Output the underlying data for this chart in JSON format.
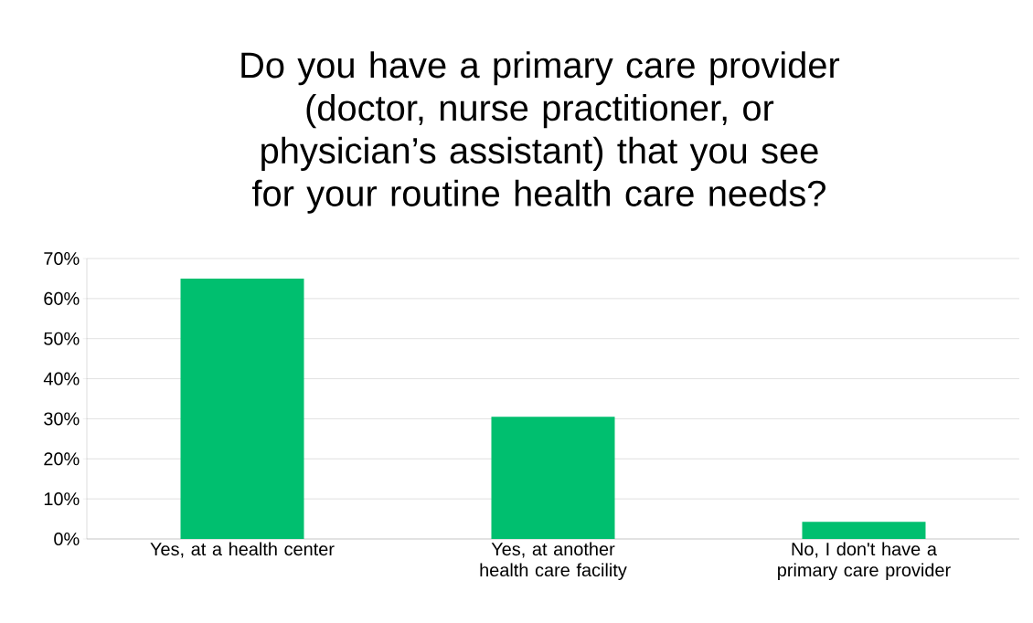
{
  "chart_data": {
    "type": "bar",
    "title": "Do you have a primary care provider (doctor, nurse practitioner, or physician’s assistant) that you see for your routine health care needs?",
    "categories": [
      "Yes, at a health center",
      "Yes, at another health care facility",
      "No, I don't have a primary care provider"
    ],
    "values": [
      65,
      30.5,
      4.3
    ],
    "color": "#00bf6f",
    "ylim": [
      0,
      70
    ],
    "yticks": [
      {
        "value": 0,
        "label": "0%"
      },
      {
        "value": 10,
        "label": "10%"
      },
      {
        "value": 20,
        "label": "20%"
      },
      {
        "value": 30,
        "label": "30%"
      },
      {
        "value": 40,
        "label": "40%"
      },
      {
        "value": 50,
        "label": "50%"
      },
      {
        "value": 60,
        "label": "60%"
      },
      {
        "value": 70,
        "label": "70%"
      }
    ],
    "grid": "y"
  }
}
